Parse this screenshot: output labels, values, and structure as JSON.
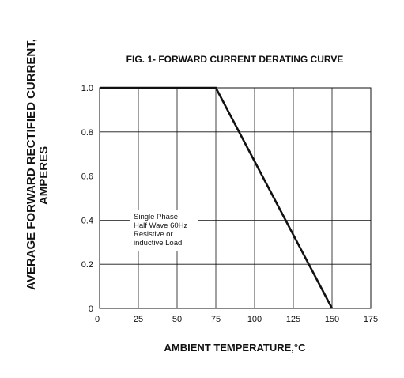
{
  "chart_data": {
    "type": "line",
    "title": "FIG. 1- FORWARD CURRENT DERATING CURVE",
    "xlabel": "AMBIENT TEMPERATURE,°C",
    "ylabel_line1": "AVERAGE FORWARD RECTIFIED CURRENT,",
    "ylabel_line2": "AMPERES",
    "xlim": [
      0,
      175
    ],
    "ylim": [
      0,
      1.0
    ],
    "x_ticks": [
      0,
      25,
      50,
      75,
      100,
      125,
      150,
      175
    ],
    "x_tick_labels": [
      "0",
      "25",
      "50",
      "75",
      "100",
      "125",
      "150",
      "175"
    ],
    "y_ticks": [
      0,
      0.2,
      0.4,
      0.6,
      0.8,
      1.0
    ],
    "y_tick_labels": [
      "0",
      "0.2",
      "0.4",
      "0.6",
      "0.8",
      "1.0"
    ],
    "grid": true,
    "series": [
      {
        "x": [
          0,
          75,
          150
        ],
        "y": [
          1.0,
          1.0,
          0
        ]
      }
    ],
    "annotation_lines": [
      "Single Phase",
      "Half Wave 60Hz",
      "Resistive or",
      "inductive Load"
    ]
  }
}
